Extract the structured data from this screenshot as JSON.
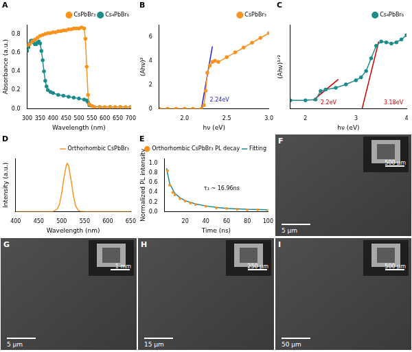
{
  "chart_data": [
    {
      "panel": "A",
      "type": "line",
      "x_label": "Wavelength (nm)",
      "y_label": "Absorbance (a.u.)",
      "xlim": [
        300,
        700
      ],
      "xticks": [
        300,
        350,
        400,
        450,
        500,
        550,
        600,
        650,
        700
      ],
      "ylim": [
        0,
        0.9
      ],
      "yticks": [
        {
          "value": 0,
          "label": "0.0"
        },
        {
          "value": 0.2,
          "label": "0.2"
        },
        {
          "value": 0.4,
          "label": "0.4"
        },
        {
          "value": 0.6,
          "label": "0.6"
        },
        {
          "value": 0.8,
          "label": "0.8"
        }
      ],
      "grid": false,
      "legend": "top",
      "series": [
        {
          "name": "CsPbBr₃",
          "color": "#f7931e",
          "marker": "circle",
          "line_style": "solid",
          "x": [
            300,
            310,
            320,
            330,
            340,
            350,
            360,
            370,
            380,
            390,
            400,
            410,
            420,
            430,
            440,
            450,
            460,
            470,
            480,
            490,
            500,
            510,
            520,
            525,
            530,
            535,
            540,
            550,
            560,
            580,
            600,
            620,
            640,
            660,
            680,
            700
          ],
          "values": [
            0.68,
            0.69,
            0.72,
            0.74,
            0.76,
            0.78,
            0.79,
            0.8,
            0.81,
            0.81,
            0.82,
            0.82,
            0.83,
            0.83,
            0.84,
            0.84,
            0.85,
            0.85,
            0.86,
            0.86,
            0.86,
            0.87,
            0.86,
            0.75,
            0.45,
            0.15,
            0.05,
            0.03,
            0.02,
            0.02,
            0.02,
            0.02,
            0.02,
            0.02,
            0.02,
            0.02
          ]
        },
        {
          "name": "Cs₄PbBr₆",
          "color": "#1a8c8c",
          "marker": "circle",
          "line_style": "solid",
          "x": [
            300,
            305,
            310,
            315,
            320,
            325,
            330,
            335,
            340,
            345,
            350,
            355,
            360,
            365,
            370,
            375,
            380,
            390,
            400,
            420,
            440,
            460,
            480,
            500,
            520,
            530,
            535,
            540,
            550,
            580,
            620,
            660,
            700
          ],
          "values": [
            0.62,
            0.66,
            0.7,
            0.73,
            0.73,
            0.71,
            0.69,
            0.69,
            0.71,
            0.72,
            0.7,
            0.62,
            0.52,
            0.4,
            0.3,
            0.24,
            0.2,
            0.18,
            0.17,
            0.15,
            0.14,
            0.13,
            0.12,
            0.11,
            0.1,
            0.09,
            0.07,
            0.04,
            0.03,
            0.02,
            0.02,
            0.02,
            0.02
          ]
        }
      ]
    },
    {
      "panel": "B",
      "type": "line",
      "x_label": "hν (eV)",
      "y_label": "(Ahν)²",
      "xlim": [
        1.7,
        3.0
      ],
      "xticks": [
        {
          "value": 2,
          "label": "2.0"
        },
        {
          "value": 2.5,
          "label": "2.5"
        },
        {
          "value": 3,
          "label": "3.0"
        }
      ],
      "ylim": [
        0,
        7
      ],
      "yticks": [
        0,
        2,
        4,
        6
      ],
      "grid": false,
      "legend": "top",
      "series": [
        {
          "name": "CsPbBr₃",
          "color": "#f7931e",
          "marker": "circle",
          "line_style": "solid",
          "x": [
            1.7,
            1.8,
            1.9,
            2.0,
            2.1,
            2.2,
            2.23,
            2.25,
            2.27,
            2.3,
            2.33,
            2.36,
            2.4,
            2.5,
            2.6,
            2.7,
            2.8,
            2.9,
            3.0
          ],
          "values": [
            0,
            0,
            0,
            0,
            0,
            0,
            0.3,
            1.5,
            3.0,
            3.6,
            3.9,
            4.0,
            3.9,
            4.3,
            4.7,
            5.1,
            5.5,
            5.9,
            6.3
          ]
        },
        {
          "color": "#2222cc",
          "marker": "none",
          "line_style": "solid",
          "x": [
            2.2,
            2.33
          ],
          "values": [
            0,
            5.2
          ]
        }
      ],
      "annotations": [
        {
          "text": "2.24eV",
          "x": 2.3,
          "y": 0.5,
          "color": "#2222cc"
        }
      ]
    },
    {
      "panel": "C",
      "type": "line",
      "x_label": "hν (eV)",
      "y_label": "(Ahν)¹ᐟ²",
      "xlim": [
        1.7,
        4.0
      ],
      "xticks": [
        2,
        3,
        4
      ],
      "ylim": [
        0,
        2
      ],
      "grid": false,
      "legend": "top",
      "tick_labels": "x",
      "series": [
        {
          "name": "Cs₄PbBr₆",
          "color": "#1a8c8c",
          "marker": "circle",
          "line_style": "solid",
          "x": [
            1.7,
            2.0,
            2.2,
            2.3,
            2.4,
            2.6,
            2.8,
            3.0,
            3.1,
            3.2,
            3.3,
            3.4,
            3.5,
            3.6,
            3.7,
            3.8,
            3.9,
            4.0
          ],
          "values": [
            0.2,
            0.2,
            0.22,
            0.42,
            0.46,
            0.5,
            0.58,
            0.68,
            0.75,
            0.9,
            1.2,
            1.5,
            1.6,
            1.58,
            1.55,
            1.58,
            1.65,
            1.75
          ]
        },
        {
          "color": "#cc0000",
          "marker": "none",
          "line_style": "solid",
          "x": [
            2.15,
            2.65
          ],
          "values": [
            0.2,
            0.7
          ]
        },
        {
          "color": "#cc0000",
          "marker": "none",
          "line_style": "solid",
          "x": [
            3.12,
            3.45
          ],
          "values": [
            0,
            1.6
          ]
        }
      ],
      "annotations": [
        {
          "text": "2.2eV",
          "x": 2.3,
          "y": 0.08,
          "color": "#cc0000"
        },
        {
          "text": "3.18eV",
          "x": 3.55,
          "y": 0.08,
          "color": "#cc0000"
        }
      ]
    },
    {
      "panel": "D",
      "type": "line",
      "x_label": "Wavelength (nm)",
      "y_label": "Intensity (a.u.)",
      "xlim": [
        400,
        650
      ],
      "xticks": [
        400,
        450,
        500,
        550,
        600,
        650
      ],
      "ylim": [
        0,
        1.1
      ],
      "grid": false,
      "legend": "top",
      "tick_labels": "x",
      "series": [
        {
          "name": "Orthorhombic CsPbBr₃",
          "color": "#f7931e",
          "marker": "none",
          "line_style": "solid",
          "x": [
            400,
            450,
            470,
            480,
            490,
            495,
            500,
            505,
            510,
            512,
            515,
            520,
            525,
            530,
            535,
            540,
            550,
            600,
            650
          ],
          "values": [
            0,
            0,
            0,
            0,
            0.05,
            0.15,
            0.38,
            0.7,
            0.96,
            1,
            0.95,
            0.68,
            0.36,
            0.13,
            0.04,
            0.01,
            0,
            0,
            0
          ]
        }
      ]
    },
    {
      "panel": "E",
      "type": "scatter",
      "x_label": "Time (ns)",
      "y_label": "Normalized PL intensity",
      "xlim": [
        0,
        100
      ],
      "xticks": [
        20,
        40,
        60,
        80,
        100
      ],
      "ylim": [
        0,
        1.1
      ],
      "yticks": [
        {
          "value": 0,
          "label": "0.0"
        },
        {
          "value": 0.2,
          "label": "0.2"
        },
        {
          "value": 0.4,
          "label": "0.4"
        },
        {
          "value": 0.6,
          "label": "0.6"
        },
        {
          "value": 0.8,
          "label": "0.8"
        },
        {
          "value": 1,
          "label": "1.0"
        }
      ],
      "grid": false,
      "legend": "top",
      "series": [
        {
          "name": "Orthorhombic CsPbBr₃ PL decay",
          "color": "#f7931e",
          "marker": "circle",
          "line_style": "none",
          "x": [
            3,
            5,
            8,
            10,
            15,
            20,
            25,
            30,
            40,
            50,
            60,
            70,
            80,
            90,
            100
          ],
          "values": [
            0.85,
            0.55,
            0.4,
            0.35,
            0.27,
            0.22,
            0.18,
            0.15,
            0.11,
            0.08,
            0.07,
            0.05,
            0.04,
            0.04,
            0.03
          ]
        },
        {
          "name": "Fitting",
          "color": "#1a8c8c",
          "marker": "none",
          "line_style": "solid",
          "x": [
            2,
            5,
            10,
            15,
            20,
            30,
            40,
            50,
            60,
            80,
            100
          ],
          "values": [
            0.9,
            0.58,
            0.38,
            0.29,
            0.23,
            0.16,
            0.12,
            0.09,
            0.07,
            0.05,
            0.04
          ]
        }
      ],
      "annotations": [
        {
          "text": "τ₁ ~ 16.96ns",
          "x": 38,
          "y": 0.42,
          "color": "#000000"
        }
      ]
    }
  ],
  "images": [
    {
      "panel": "F",
      "scale_bar": "5 μm",
      "inset_scale_bar": "500 μm"
    },
    {
      "panel": "G",
      "scale_bar": "5 μm",
      "inset_scale_bar": "1 mm"
    },
    {
      "panel": "H",
      "scale_bar": "15 μm",
      "inset_scale_bar": "250 μm"
    },
    {
      "panel": "I",
      "scale_bar": "50 μm",
      "inset_scale_bar": "500 μm"
    }
  ]
}
